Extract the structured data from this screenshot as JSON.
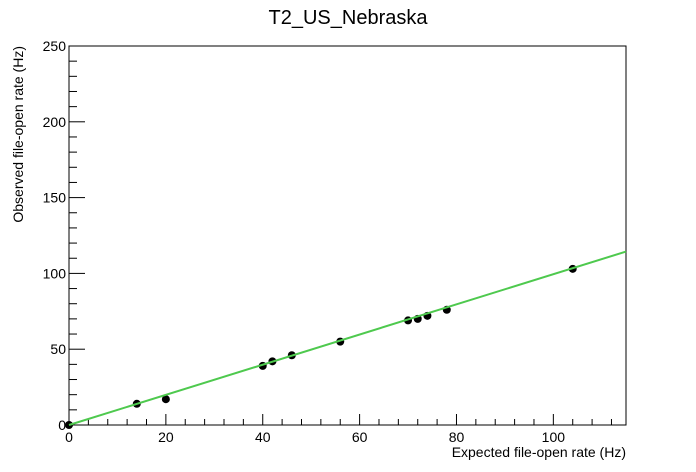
{
  "chart_data": {
    "type": "scatter",
    "title": "T2_US_Nebraska",
    "xlabel": "Expected file-open rate (Hz)",
    "ylabel": "Observed file-open rate (Hz)",
    "xlim": [
      0,
      115
    ],
    "ylim": [
      0,
      250
    ],
    "x_ticks": [
      0,
      20,
      40,
      60,
      80,
      100
    ],
    "y_ticks": [
      0,
      50,
      100,
      150,
      200,
      250
    ],
    "x_tick_labels": [
      "0",
      "20",
      "40",
      "60",
      "80",
      "100"
    ],
    "y_tick_labels": [
      "0",
      "50",
      "100",
      "150",
      "200",
      "250"
    ],
    "grid": false,
    "series": [
      {
        "type": "scatter",
        "color": "#000000",
        "x": [
          0,
          14,
          20,
          40,
          42,
          46,
          56,
          70,
          72,
          74,
          78,
          104
        ],
        "y": [
          0,
          14,
          17,
          39,
          42,
          46,
          55,
          69,
          70,
          72,
          76,
          103
        ]
      },
      {
        "type": "line",
        "color": "#4ec94e",
        "x": [
          0,
          115
        ],
        "y": [
          0,
          114.4
        ]
      }
    ]
  }
}
